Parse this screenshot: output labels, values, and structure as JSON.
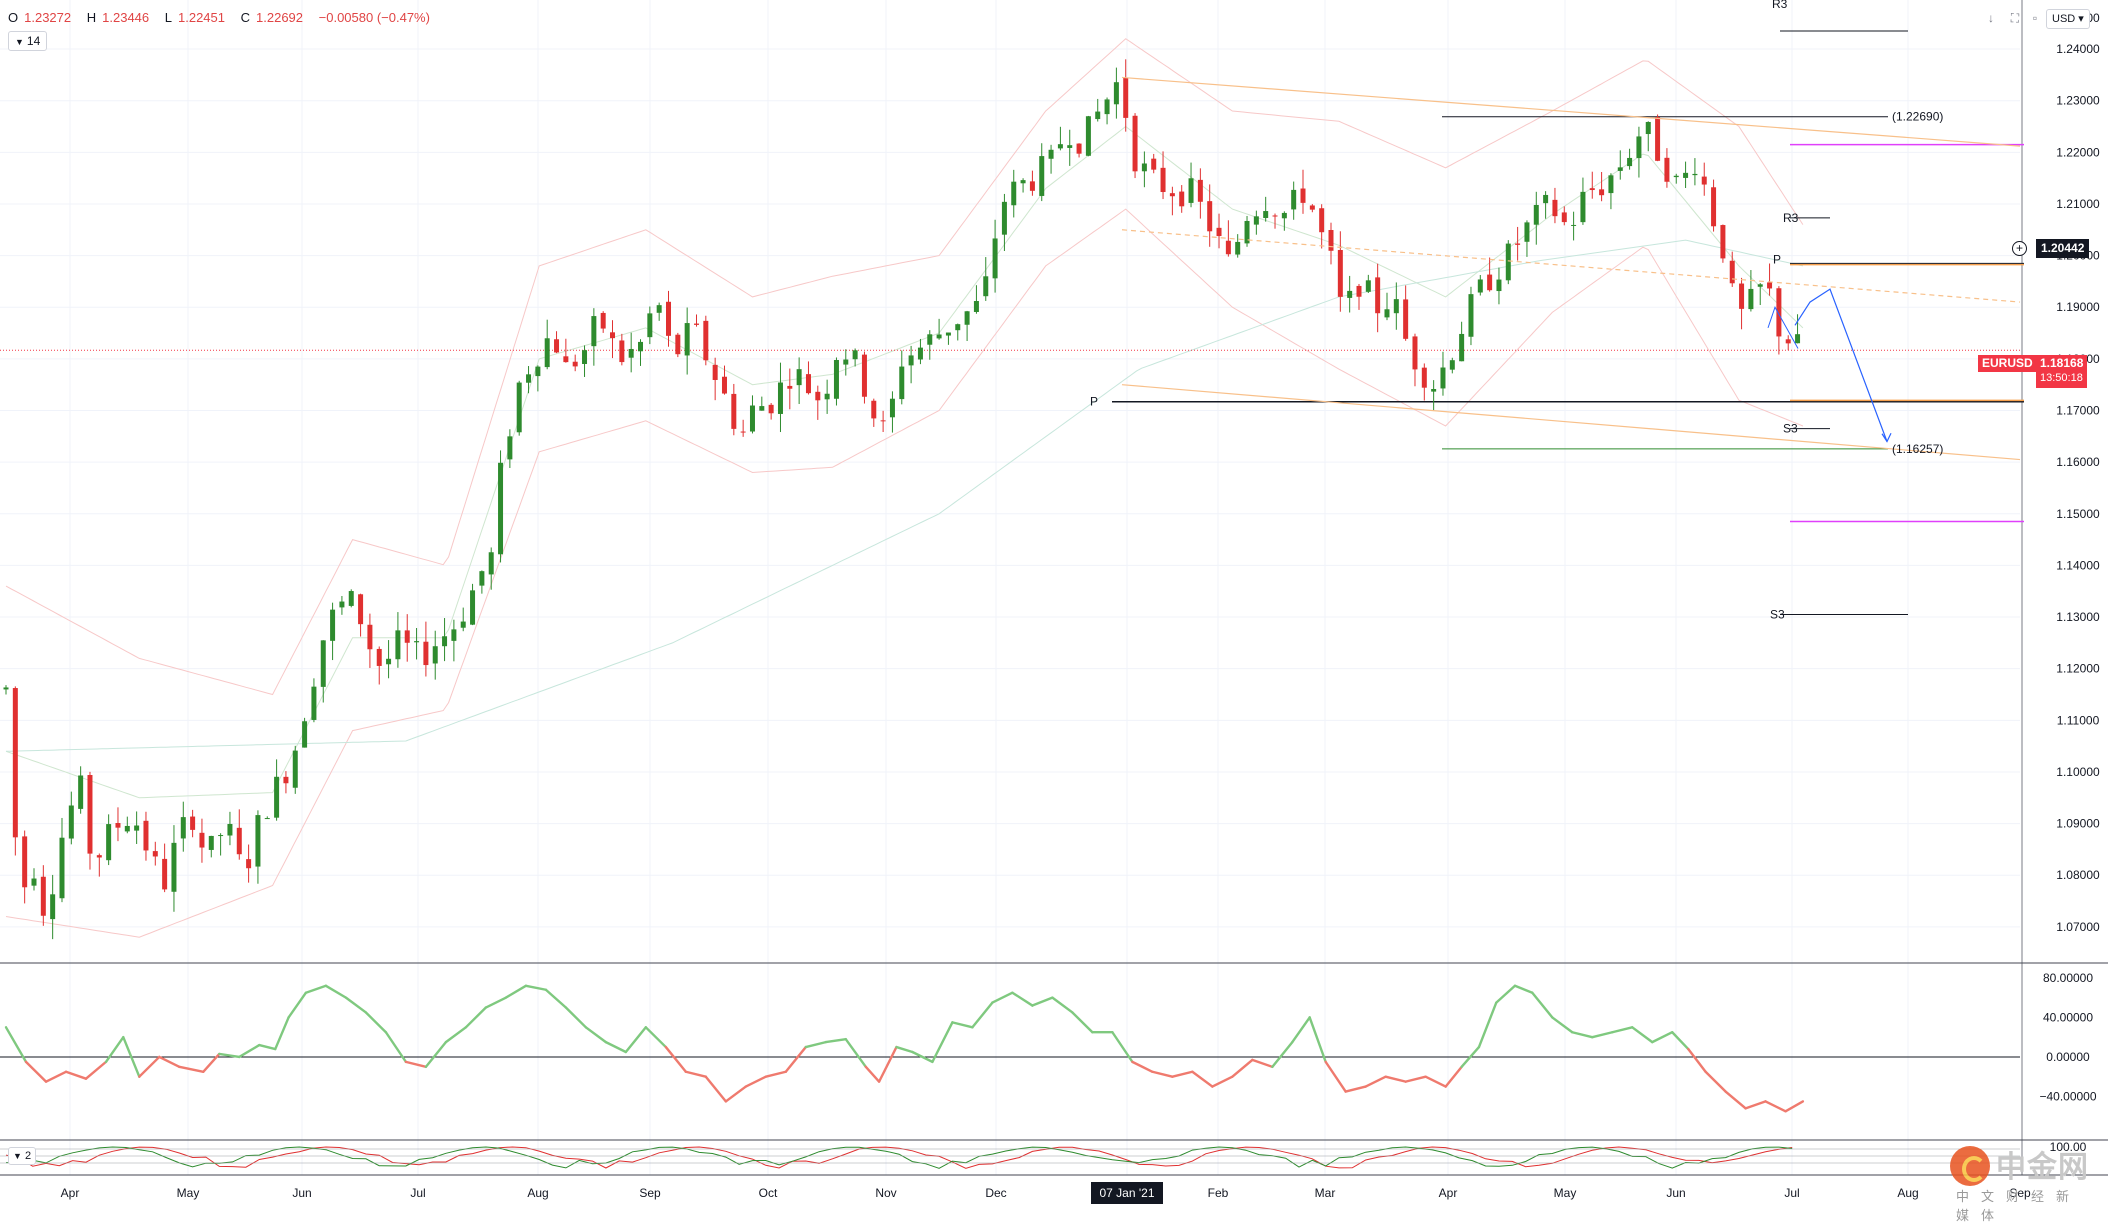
{
  "symbol": "EURUSD",
  "header": {
    "open_label": "O",
    "open": "1.23272",
    "high_label": "H",
    "high": "1.23446",
    "low_label": "L",
    "low": "1.22451",
    "close_label": "C",
    "close": "1.22692",
    "change": "−0.00580 (−0.47%)"
  },
  "indicator_chip": "14",
  "indicator2_chip": "2",
  "currency": "USD",
  "price_tags": {
    "crosshair_price": "1.20442",
    "last_price": "1.18168",
    "countdown": "13:50:18"
  },
  "annotations": {
    "level_high": "(1.22690)",
    "level_low": "(1.16257)",
    "r3": "R3",
    "p": "P",
    "s3": "S3"
  },
  "time_axis": {
    "labels": [
      "Apr",
      "May",
      "Jun",
      "Jul",
      "Aug",
      "Sep",
      "Oct",
      "Nov",
      "Dec",
      "07 Jan '21",
      "Feb",
      "Mar",
      "Apr",
      "May",
      "Jun",
      "Jul",
      "Aug",
      "Sep"
    ],
    "highlighted": "07 Jan '21"
  },
  "watermark": {
    "brand": "中金网",
    "sub": "中文财经新媒体"
  },
  "colors": {
    "up": "#2e8b2e",
    "down": "#e03030",
    "osc_up": "#7fc97f",
    "osc_down": "#ef7a6e",
    "price_tag": "#f23645",
    "fib_orange": "#f6a04d",
    "magenta": "#e040fb"
  },
  "chart_data": {
    "type": "candlestick",
    "symbol": "EURUSD",
    "timeframe": "1D",
    "ylim": [
      1.063,
      1.2495
    ],
    "y_ticks": [
      1.07,
      1.08,
      1.09,
      1.1,
      1.11,
      1.12,
      1.13,
      1.14,
      1.15,
      1.16,
      1.17,
      1.18,
      1.19,
      1.2,
      1.21,
      1.22,
      1.23,
      1.24
    ],
    "price_path": [
      [
        0,
        1.116
      ],
      [
        10,
        1.075
      ],
      [
        20,
        1.083
      ],
      [
        30,
        1.072
      ],
      [
        40,
        1.086
      ],
      [
        55,
        1.098
      ],
      [
        65,
        1.082
      ],
      [
        80,
        1.089
      ],
      [
        95,
        1.092
      ],
      [
        108,
        1.084
      ],
      [
        118,
        1.078
      ],
      [
        130,
        1.088
      ],
      [
        141,
        1.092
      ],
      [
        150,
        1.083
      ],
      [
        165,
        1.09
      ],
      [
        178,
        1.08
      ],
      [
        192,
        1.092
      ],
      [
        205,
        1.098
      ],
      [
        215,
        1.103
      ],
      [
        230,
        1.118
      ],
      [
        240,
        1.128
      ],
      [
        250,
        1.132
      ],
      [
        262,
        1.133
      ],
      [
        272,
        1.125
      ],
      [
        282,
        1.12
      ],
      [
        295,
        1.125
      ],
      [
        310,
        1.122
      ],
      [
        322,
        1.125
      ],
      [
        335,
        1.128
      ],
      [
        345,
        1.132
      ],
      [
        355,
        1.138
      ],
      [
        365,
        1.142
      ],
      [
        372,
        1.16
      ],
      [
        385,
        1.175
      ],
      [
        395,
        1.18
      ],
      [
        410,
        1.185
      ],
      [
        420,
        1.178
      ],
      [
        435,
        1.182
      ],
      [
        445,
        1.188
      ],
      [
        460,
        1.18
      ],
      [
        475,
        1.182
      ],
      [
        488,
        1.192
      ],
      [
        500,
        1.18
      ],
      [
        515,
        1.186
      ],
      [
        530,
        1.178
      ],
      [
        540,
        1.172
      ],
      [
        552,
        1.165
      ],
      [
        560,
        1.17
      ],
      [
        575,
        1.172
      ],
      [
        590,
        1.178
      ],
      [
        600,
        1.175
      ],
      [
        612,
        1.172
      ],
      [
        625,
        1.183
      ],
      [
        640,
        1.178
      ],
      [
        650,
        1.17
      ],
      [
        660,
        1.165
      ],
      [
        672,
        1.18
      ],
      [
        685,
        1.182
      ],
      [
        700,
        1.185
      ],
      [
        715,
        1.188
      ],
      [
        728,
        1.19
      ],
      [
        738,
        1.196
      ],
      [
        745,
        1.21
      ],
      [
        758,
        1.213
      ],
      [
        770,
        1.215
      ],
      [
        785,
        1.218
      ],
      [
        795,
        1.225
      ],
      [
        808,
        1.222
      ],
      [
        820,
        1.228
      ],
      [
        835,
        1.234
      ],
      [
        848,
        1.218
      ],
      [
        862,
        1.214
      ],
      [
        875,
        1.213
      ],
      [
        890,
        1.212
      ],
      [
        905,
        1.205
      ],
      [
        918,
        1.198
      ],
      [
        930,
        1.208
      ],
      [
        945,
        1.211
      ],
      [
        960,
        1.208
      ],
      [
        975,
        1.213
      ],
      [
        985,
        1.205
      ],
      [
        995,
        1.198
      ],
      [
        1003,
        1.188
      ],
      [
        1015,
        1.195
      ],
      [
        1028,
        1.19
      ],
      [
        1040,
        1.192
      ],
      [
        1052,
        1.182
      ],
      [
        1062,
        1.178
      ],
      [
        1072,
        1.175
      ],
      [
        1085,
        1.182
      ],
      [
        1095,
        1.188
      ],
      [
        1110,
        1.195
      ],
      [
        1125,
        1.199
      ],
      [
        1140,
        1.205
      ],
      [
        1158,
        1.21
      ],
      [
        1172,
        1.205
      ],
      [
        1185,
        1.212
      ],
      [
        1200,
        1.214
      ],
      [
        1215,
        1.219
      ],
      [
        1228,
        1.225
      ],
      [
        1242,
        1.219
      ],
      [
        1255,
        1.213
      ],
      [
        1268,
        1.219
      ],
      [
        1280,
        1.208
      ],
      [
        1290,
        1.2
      ],
      [
        1298,
        1.187
      ],
      [
        1310,
        1.191
      ],
      [
        1320,
        1.195
      ],
      [
        1330,
        1.186
      ],
      [
        1340,
        1.183
      ],
      [
        1348,
        1.1817
      ]
    ],
    "overlays": {
      "bb_upper": [
        [
          0,
          1.136
        ],
        [
          100,
          1.122
        ],
        [
          200,
          1.115
        ],
        [
          260,
          1.145
        ],
        [
          330,
          1.14
        ],
        [
          400,
          1.198
        ],
        [
          480,
          1.205
        ],
        [
          560,
          1.192
        ],
        [
          620,
          1.196
        ],
        [
          700,
          1.2
        ],
        [
          780,
          1.228
        ],
        [
          840,
          1.242
        ],
        [
          920,
          1.228
        ],
        [
          1000,
          1.226
        ],
        [
          1080,
          1.217
        ],
        [
          1160,
          1.228
        ],
        [
          1230,
          1.238
        ],
        [
          1300,
          1.225
        ],
        [
          1348,
          1.206
        ]
      ],
      "bb_lower": [
        [
          0,
          1.072
        ],
        [
          100,
          1.068
        ],
        [
          200,
          1.078
        ],
        [
          260,
          1.108
        ],
        [
          330,
          1.112
        ],
        [
          400,
          1.162
        ],
        [
          480,
          1.168
        ],
        [
          560,
          1.158
        ],
        [
          620,
          1.159
        ],
        [
          700,
          1.17
        ],
        [
          780,
          1.198
        ],
        [
          840,
          1.209
        ],
        [
          920,
          1.19
        ],
        [
          1000,
          1.178
        ],
        [
          1080,
          1.167
        ],
        [
          1160,
          1.189
        ],
        [
          1230,
          1.202
        ],
        [
          1300,
          1.172
        ],
        [
          1348,
          1.167
        ]
      ],
      "bb_mid": [
        [
          0,
          1.104
        ],
        [
          100,
          1.095
        ],
        [
          200,
          1.096
        ],
        [
          260,
          1.126
        ],
        [
          330,
          1.126
        ],
        [
          400,
          1.18
        ],
        [
          480,
          1.186
        ],
        [
          560,
          1.175
        ],
        [
          620,
          1.177
        ],
        [
          700,
          1.185
        ],
        [
          780,
          1.213
        ],
        [
          840,
          1.225
        ],
        [
          920,
          1.209
        ],
        [
          1000,
          1.202
        ],
        [
          1080,
          1.192
        ],
        [
          1160,
          1.208
        ],
        [
          1230,
          1.22
        ],
        [
          1300,
          1.198
        ],
        [
          1348,
          1.186
        ]
      ],
      "ma_long": [
        [
          0,
          1.104
        ],
        [
          300,
          1.106
        ],
        [
          500,
          1.125
        ],
        [
          700,
          1.15
        ],
        [
          850,
          1.178
        ],
        [
          1000,
          1.192
        ],
        [
          1150,
          1.199
        ],
        [
          1260,
          1.203
        ],
        [
          1348,
          1.198
        ]
      ]
    },
    "oscillator": {
      "ylim": [
        -80,
        90
      ],
      "y_ticks": [
        80,
        40,
        0,
        -40
      ],
      "path": [
        [
          0,
          30
        ],
        [
          15,
          -5
        ],
        [
          30,
          -25
        ],
        [
          45,
          -15
        ],
        [
          60,
          -22
        ],
        [
          75,
          -5
        ],
        [
          88,
          20
        ],
        [
          100,
          -20
        ],
        [
          115,
          0
        ],
        [
          130,
          -10
        ],
        [
          148,
          -15
        ],
        [
          160,
          3
        ],
        [
          175,
          0
        ],
        [
          190,
          12
        ],
        [
          202,
          8
        ],
        [
          212,
          40
        ],
        [
          225,
          65
        ],
        [
          240,
          72
        ],
        [
          255,
          60
        ],
        [
          270,
          45
        ],
        [
          285,
          25
        ],
        [
          300,
          -5
        ],
        [
          315,
          -10
        ],
        [
          330,
          15
        ],
        [
          345,
          30
        ],
        [
          360,
          50
        ],
        [
          375,
          60
        ],
        [
          390,
          72
        ],
        [
          405,
          68
        ],
        [
          420,
          50
        ],
        [
          435,
          30
        ],
        [
          450,
          15
        ],
        [
          465,
          5
        ],
        [
          480,
          30
        ],
        [
          495,
          10
        ],
        [
          510,
          -15
        ],
        [
          525,
          -20
        ],
        [
          540,
          -45
        ],
        [
          555,
          -30
        ],
        [
          570,
          -20
        ],
        [
          585,
          -15
        ],
        [
          600,
          10
        ],
        [
          615,
          15
        ],
        [
          630,
          18
        ],
        [
          645,
          -10
        ],
        [
          655,
          -25
        ],
        [
          668,
          10
        ],
        [
          680,
          5
        ],
        [
          695,
          -5
        ],
        [
          710,
          35
        ],
        [
          725,
          30
        ],
        [
          740,
          55
        ],
        [
          755,
          65
        ],
        [
          770,
          52
        ],
        [
          785,
          60
        ],
        [
          800,
          45
        ],
        [
          815,
          25
        ],
        [
          830,
          25
        ],
        [
          845,
          -5
        ],
        [
          860,
          -15
        ],
        [
          875,
          -20
        ],
        [
          890,
          -15
        ],
        [
          905,
          -30
        ],
        [
          920,
          -20
        ],
        [
          935,
          -3
        ],
        [
          950,
          -10
        ],
        [
          965,
          15
        ],
        [
          978,
          40
        ],
        [
          990,
          -5
        ],
        [
          1005,
          -35
        ],
        [
          1020,
          -30
        ],
        [
          1035,
          -20
        ],
        [
          1050,
          -25
        ],
        [
          1065,
          -20
        ],
        [
          1080,
          -30
        ],
        [
          1092,
          -10
        ],
        [
          1105,
          10
        ],
        [
          1118,
          55
        ],
        [
          1132,
          72
        ],
        [
          1145,
          65
        ],
        [
          1160,
          40
        ],
        [
          1175,
          25
        ],
        [
          1190,
          20
        ],
        [
          1205,
          25
        ],
        [
          1220,
          30
        ],
        [
          1235,
          15
        ],
        [
          1250,
          25
        ],
        [
          1262,
          8
        ],
        [
          1275,
          -15
        ],
        [
          1290,
          -35
        ],
        [
          1305,
          -52
        ],
        [
          1320,
          -45
        ],
        [
          1335,
          -55
        ],
        [
          1348,
          -45
        ]
      ]
    },
    "oscillator2": {
      "ylim": [
        -100,
        100
      ],
      "tick_label": "100.00"
    },
    "levels": {
      "resistance": 1.2269,
      "support": 1.16257,
      "fib_upper": 1.19826,
      "fib_lower": 1.17196,
      "magenta_upper": 1.2215,
      "magenta_lower": 1.1485,
      "pivot_P": 1.1717,
      "pivot_R3": 1.2435,
      "pivot_S3": 1.1305,
      "recent_R3": 1.2073,
      "recent_P": 1.1985,
      "recent_S3": 1.1665
    }
  }
}
